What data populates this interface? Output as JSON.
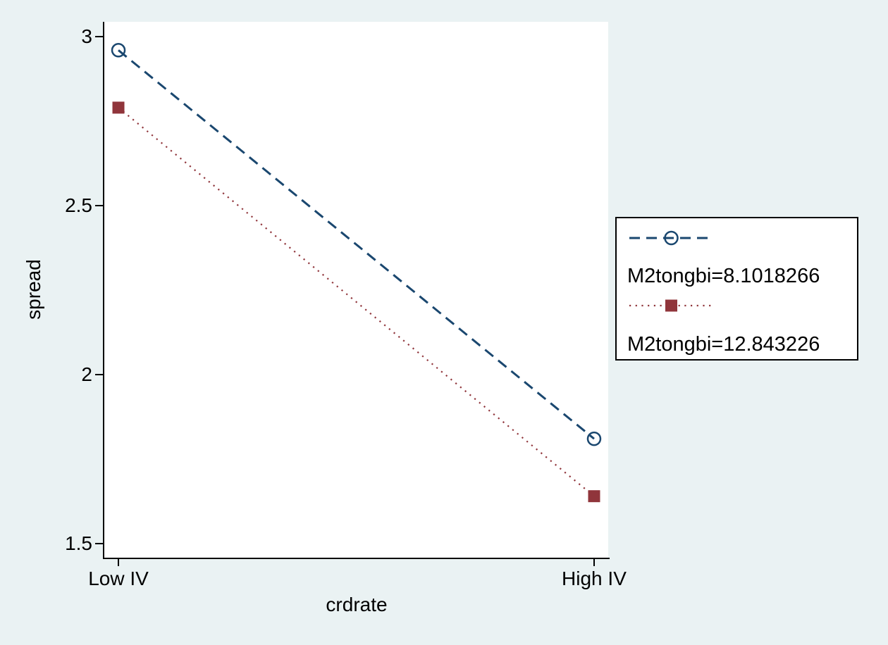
{
  "figure": {
    "background_color": "#eaf2f3",
    "plot_background_color": "#ffffff",
    "axis_color": "#000000"
  },
  "chart_data": {
    "type": "line",
    "title": "",
    "xlabel": "crdrate",
    "ylabel": "spread",
    "categories": [
      "Low IV",
      "High IV"
    ],
    "x_positions": [
      0.028,
      0.972
    ],
    "series": [
      {
        "name": "M2tongbi=8.1018266",
        "values": [
          2.96,
          1.81
        ],
        "color": "#1a476f",
        "line_style": "dashed",
        "marker": "open-circle"
      },
      {
        "name": "M2tongbi=12.843226",
        "values": [
          2.79,
          1.64
        ],
        "color": "#90353b",
        "line_style": "dotted",
        "marker": "filled-square"
      }
    ],
    "yticks": [
      "1.5",
      "2",
      "2.5",
      "3"
    ],
    "ytick_values": [
      1.5,
      2,
      2.5,
      3
    ],
    "ylim": [
      1.458,
      3.044
    ],
    "grid": false,
    "legend_position": "right-outside"
  }
}
